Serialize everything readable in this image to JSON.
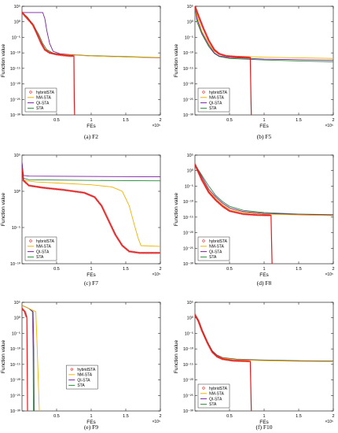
{
  "colors": {
    "hybridSTA": "#e31a1c",
    "NM-STA": "#f0b400",
    "QI-STA": "#7b1fa2",
    "STA": "#2e8b3c"
  },
  "chart_data": [
    {
      "type": "line",
      "caption": "(a) F2",
      "xlabel": "FEs",
      "ylabel": "Function value",
      "x_scale_label": "×10⁵",
      "xlim": [
        0,
        2
      ],
      "xticks": [
        "0.5",
        "1",
        "1.5",
        "2"
      ],
      "ylim_exp": [
        -30,
        5
      ],
      "yticks": [
        "10⁵",
        "10⁰",
        "10⁻⁵",
        "10⁻¹⁰",
        "10⁻¹⁵",
        "10⁻²⁰",
        "10⁻²⁵",
        "10⁻³⁰"
      ],
      "log_y": true,
      "legend_position": "bottom-left",
      "series": [
        {
          "name": "hybridSTA",
          "x": [
            0.0,
            0.08,
            0.16,
            0.22,
            0.28,
            0.33,
            0.4,
            0.5,
            0.6,
            0.7,
            0.75,
            0.755,
            0.76
          ],
          "y_exp": [
            3,
            1,
            -1,
            -4,
            -7,
            -9,
            -10,
            -10.5,
            -10.8,
            -11,
            -11,
            -25,
            -30
          ]
        },
        {
          "name": "NM-STA",
          "x": [
            0.0,
            0.05,
            0.12,
            0.2,
            0.26,
            0.32,
            0.4,
            0.6,
            1.0,
            1.5,
            2.0
          ],
          "y_exp": [
            3,
            2,
            0,
            -3,
            -6,
            -8.5,
            -10,
            -10.6,
            -11,
            -11.3,
            -11.5
          ]
        },
        {
          "name": "QI-STA",
          "x": [
            0.0,
            0.3,
            0.33,
            0.36,
            0.4,
            0.45,
            0.55,
            0.7,
            1.0,
            1.5,
            2.0
          ],
          "y_exp": [
            3,
            3,
            1,
            -3,
            -7,
            -9.5,
            -10.3,
            -10.6,
            -11,
            -11.3,
            -11.6
          ]
        },
        {
          "name": "STA",
          "x": [
            0.0,
            0.08,
            0.16,
            0.24,
            0.3,
            0.36,
            0.45,
            0.6,
            1.0,
            1.5,
            2.0
          ],
          "y_exp": [
            3,
            1.5,
            -1,
            -4,
            -7,
            -9,
            -10.1,
            -10.5,
            -10.9,
            -11.2,
            -11.5
          ]
        }
      ]
    },
    {
      "type": "line",
      "caption": "(b) F5",
      "xlabel": "FEs",
      "ylabel": "Function value",
      "x_scale_label": "×10⁵",
      "xlim": [
        0,
        2
      ],
      "xticks": [
        "0.5",
        "1",
        "1.5",
        "2"
      ],
      "ylim_exp": [
        -30,
        5
      ],
      "yticks": [
        "10⁵",
        "10⁰",
        "10⁻⁵",
        "10⁻¹⁰",
        "10⁻¹⁵",
        "10⁻²⁰",
        "10⁻²⁵",
        "10⁻³⁰"
      ],
      "log_y": true,
      "legend_position": "bottom-left",
      "series": [
        {
          "name": "hybridSTA",
          "x": [
            0.0,
            0.05,
            0.12,
            0.2,
            0.28,
            0.35,
            0.45,
            0.6,
            0.8,
            0.81,
            0.815
          ],
          "y_exp": [
            5,
            2,
            -2,
            -6,
            -9,
            -10.3,
            -11,
            -11.3,
            -11.5,
            -25,
            -30
          ]
        },
        {
          "name": "NM-STA",
          "x": [
            0.0,
            0.03,
            0.1,
            0.2,
            0.28,
            0.35,
            0.5,
            1.0,
            1.5,
            2.0
          ],
          "y_exp": [
            5,
            2,
            -3,
            -7,
            -9.5,
            -10.5,
            -11,
            -11.4,
            -11.6,
            -11.8
          ]
        },
        {
          "name": "QI-STA",
          "x": [
            0.0,
            0.03,
            0.1,
            0.2,
            0.28,
            0.35,
            0.5,
            1.0,
            1.5,
            2.0
          ],
          "y_exp": [
            5,
            1,
            -3.5,
            -7.5,
            -10,
            -11,
            -11.5,
            -12,
            -12.2,
            -12.4
          ]
        },
        {
          "name": "STA",
          "x": [
            0.0,
            0.03,
            0.1,
            0.2,
            0.28,
            0.35,
            0.5,
            1.0,
            1.5,
            2.0
          ],
          "y_exp": [
            5,
            0,
            -4,
            -8,
            -10.2,
            -11.2,
            -11.8,
            -12.3,
            -12.6,
            -12.9
          ]
        }
      ]
    },
    {
      "type": "line",
      "caption": "(c) F7",
      "xlabel": "FEs",
      "ylabel": "Function value",
      "x_scale_label": "×10⁵",
      "xlim": [
        0,
        2
      ],
      "xticks": [
        "0.5",
        "1",
        "1.5",
        "2"
      ],
      "ylim_exp": [
        -10,
        5
      ],
      "yticks": [
        "10⁵",
        "10⁰",
        "10⁻⁵",
        "10⁻¹⁰"
      ],
      "log_y": true,
      "legend_position": "bottom-left",
      "series": [
        {
          "name": "hybridSTA",
          "x": [
            0.0,
            0.02,
            0.1,
            0.3,
            0.6,
            0.9,
            1.05,
            1.15,
            1.25,
            1.35,
            1.45,
            1.55,
            1.7,
            2.0
          ],
          "y_exp": [
            3,
            1.5,
            0.8,
            0.5,
            0.2,
            -0.2,
            -0.8,
            -2,
            -4,
            -6,
            -7.5,
            -8.3,
            -8.5,
            -8.5
          ]
        },
        {
          "name": "NM-STA",
          "x": [
            0.0,
            0.02,
            0.2,
            0.6,
            1.0,
            1.3,
            1.45,
            1.55,
            1.62,
            1.68,
            1.72,
            2.0
          ],
          "y_exp": [
            3,
            1.5,
            1.3,
            1.1,
            0.9,
            0.6,
            0,
            -2,
            -4.5,
            -6.5,
            -7.5,
            -7.6
          ]
        },
        {
          "name": "QI-STA",
          "x": [
            0.0,
            0.02,
            0.1,
            2.0
          ],
          "y_exp": [
            4,
            2.2,
            2.1,
            2.0
          ]
        },
        {
          "name": "STA",
          "x": [
            0.0,
            0.02,
            0.1,
            1.0,
            2.0
          ],
          "y_exp": [
            4,
            1.8,
            1.6,
            1.5,
            1.45
          ]
        }
      ]
    },
    {
      "type": "line",
      "caption": "(d) F8",
      "xlabel": "FEs",
      "ylabel": "Function value",
      "x_scale_label": "×10⁵",
      "xlim": [
        0,
        2
      ],
      "xticks": [
        "0.5",
        "1",
        "1.5",
        "2"
      ],
      "ylim_exp": [
        -30,
        5
      ],
      "yticks": [
        "10⁵",
        "10⁰",
        "10⁻⁵",
        "10⁻¹⁰",
        "10⁻¹⁵",
        "10⁻²⁰",
        "10⁻²⁵",
        "10⁻³⁰"
      ],
      "log_y": true,
      "legend_position": "bottom-left",
      "series": [
        {
          "name": "hybridSTA",
          "x": [
            0.0,
            0.1,
            0.2,
            0.3,
            0.4,
            0.5,
            0.7,
            0.9,
            1.1,
            1.11,
            1.115
          ],
          "y_exp": [
            2,
            -3,
            -7,
            -9.5,
            -11.5,
            -13,
            -14,
            -14.3,
            -14.4,
            -25,
            -30
          ]
        },
        {
          "name": "NM-STA",
          "x": [
            0.0,
            0.1,
            0.2,
            0.3,
            0.4,
            0.5,
            0.7,
            1.0,
            1.5,
            2.0
          ],
          "y_exp": [
            2,
            -2.5,
            -6.5,
            -9,
            -11,
            -12.5,
            -13.5,
            -14,
            -14.3,
            -14.5
          ]
        },
        {
          "name": "QI-STA",
          "x": [
            0.0,
            0.1,
            0.2,
            0.3,
            0.4,
            0.5,
            0.7,
            1.0,
            1.5,
            2.0
          ],
          "y_exp": [
            2,
            -2,
            -6,
            -8.5,
            -10.5,
            -12,
            -13.2,
            -13.8,
            -14.1,
            -14.3
          ]
        },
        {
          "name": "STA",
          "x": [
            0.0,
            0.1,
            0.2,
            0.3,
            0.4,
            0.5,
            0.7,
            1.0,
            1.5,
            2.0
          ],
          "y_exp": [
            2,
            -1.5,
            -5,
            -8,
            -10,
            -11.5,
            -12.8,
            -13.5,
            -14,
            -14.2
          ]
        }
      ]
    },
    {
      "type": "line",
      "caption": "(e) F9",
      "xlabel": "FEs",
      "ylabel": "Function value",
      "x_scale_label": "×10⁵",
      "xlim": [
        0,
        2
      ],
      "xticks": [
        "0.5",
        "1",
        "1.5",
        "2"
      ],
      "ylim_exp": [
        -30,
        5
      ],
      "yticks": [
        "10⁵",
        "10⁰",
        "10⁻⁵",
        "10⁻¹⁰",
        "10⁻¹⁵",
        "10⁻²⁰",
        "10⁻²⁵",
        "10⁻³⁰"
      ],
      "log_y": true,
      "legend_position": "right",
      "series": [
        {
          "name": "hybridSTA",
          "x": [
            0.0,
            0.04,
            0.07,
            0.075,
            0.08
          ],
          "y_exp": [
            3,
            2,
            0,
            -15,
            -30
          ]
        },
        {
          "name": "NM-STA",
          "x": [
            0.0,
            0.1,
            0.2,
            0.22,
            0.25
          ],
          "y_exp": [
            4,
            3,
            2,
            -10,
            -30
          ]
        },
        {
          "name": "QI-STA",
          "x": [
            0.0,
            0.1,
            0.16,
            0.17,
            0.175
          ],
          "y_exp": [
            4,
            3,
            2,
            -10,
            -30
          ]
        },
        {
          "name": "STA",
          "x": [
            0.0,
            0.1,
            0.15,
            0.16,
            0.165
          ],
          "y_exp": [
            4,
            3,
            2,
            -10,
            -30
          ]
        }
      ]
    },
    {
      "type": "line",
      "caption": "(f) F10",
      "xlabel": "FEs",
      "ylabel": "Function value",
      "x_scale_label": "×10⁵",
      "xlim": [
        0,
        2
      ],
      "xticks": [
        "0.5",
        "1",
        "1.5",
        "2"
      ],
      "ylim_exp": [
        -30,
        5
      ],
      "yticks": [
        "10⁵",
        "10⁰",
        "10⁻⁵",
        "10⁻¹⁰",
        "10⁻¹⁵",
        "10⁻²⁰",
        "10⁻²⁵",
        "10⁻³⁰"
      ],
      "log_y": true,
      "legend_position": "bottom-left",
      "series": [
        {
          "name": "hybridSTA",
          "x": [
            0.0,
            0.05,
            0.1,
            0.18,
            0.25,
            0.32,
            0.4,
            0.55,
            0.8,
            0.81,
            0.815
          ],
          "y_exp": [
            1,
            -1,
            -4,
            -8,
            -11,
            -12.5,
            -13.3,
            -13.8,
            -14,
            -25,
            -30
          ]
        },
        {
          "name": "NM-STA",
          "x": [
            0.0,
            0.05,
            0.1,
            0.18,
            0.25,
            0.32,
            0.4,
            0.6,
            1.0,
            1.5,
            2.0
          ],
          "y_exp": [
            1,
            -1.2,
            -4.2,
            -8.2,
            -11,
            -12.3,
            -13,
            -13.5,
            -13.8,
            -14,
            -14.1
          ]
        },
        {
          "name": "QI-STA",
          "x": [
            0.0,
            0.05,
            0.1,
            0.18,
            0.25,
            0.32,
            0.4,
            0.6,
            1.0,
            1.5,
            2.0
          ],
          "y_exp": [
            1,
            -1,
            -4,
            -8,
            -10.8,
            -12.1,
            -12.9,
            -13.4,
            -13.7,
            -13.9,
            -14
          ]
        },
        {
          "name": "STA",
          "x": [
            0.0,
            0.05,
            0.1,
            0.18,
            0.25,
            0.32,
            0.4,
            0.6,
            1.0,
            1.5,
            2.0
          ],
          "y_exp": [
            1,
            -0.8,
            -3.8,
            -7.8,
            -10.6,
            -12,
            -12.8,
            -13.3,
            -13.6,
            -13.8,
            -13.9
          ]
        }
      ]
    }
  ]
}
